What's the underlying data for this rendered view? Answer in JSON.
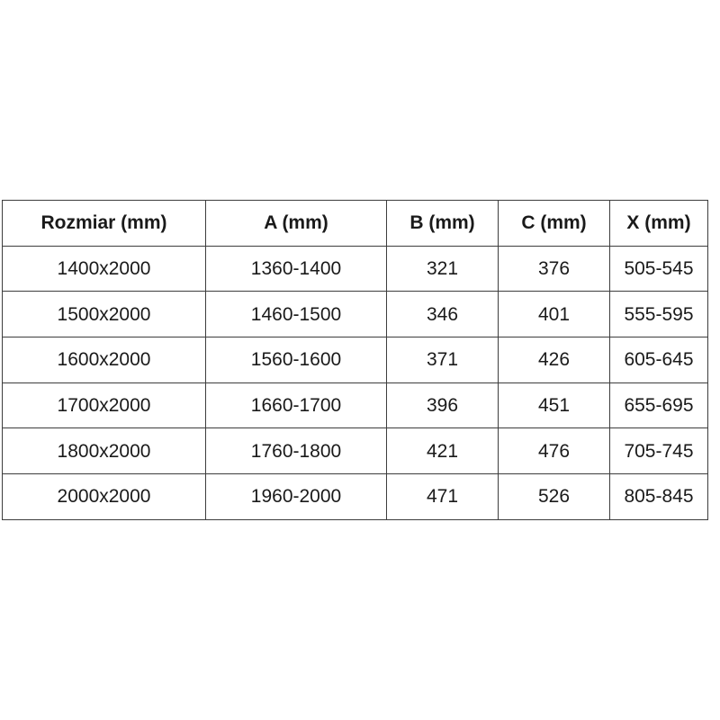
{
  "chart_data": {
    "type": "table",
    "title": "",
    "columns": [
      "Rozmiar (mm)",
      "A (mm)",
      "B (mm)",
      "C (mm)",
      "X (mm)"
    ],
    "rows": [
      [
        "1400x2000",
        "1360-1400",
        "321",
        "376",
        "505-545"
      ],
      [
        "1500x2000",
        "1460-1500",
        "346",
        "401",
        "555-595"
      ],
      [
        "1600x2000",
        "1560-1600",
        "371",
        "426",
        "605-645"
      ],
      [
        "1700x2000",
        "1660-1700",
        "396",
        "451",
        "655-695"
      ],
      [
        "1800x2000",
        "1760-1800",
        "421",
        "476",
        "705-745"
      ],
      [
        "2000x2000",
        "1960-2000",
        "471",
        "526",
        "805-845"
      ]
    ]
  },
  "colors": {
    "border": "#3d3d3d",
    "text": "#1a1a1a",
    "background": "#ffffff"
  }
}
